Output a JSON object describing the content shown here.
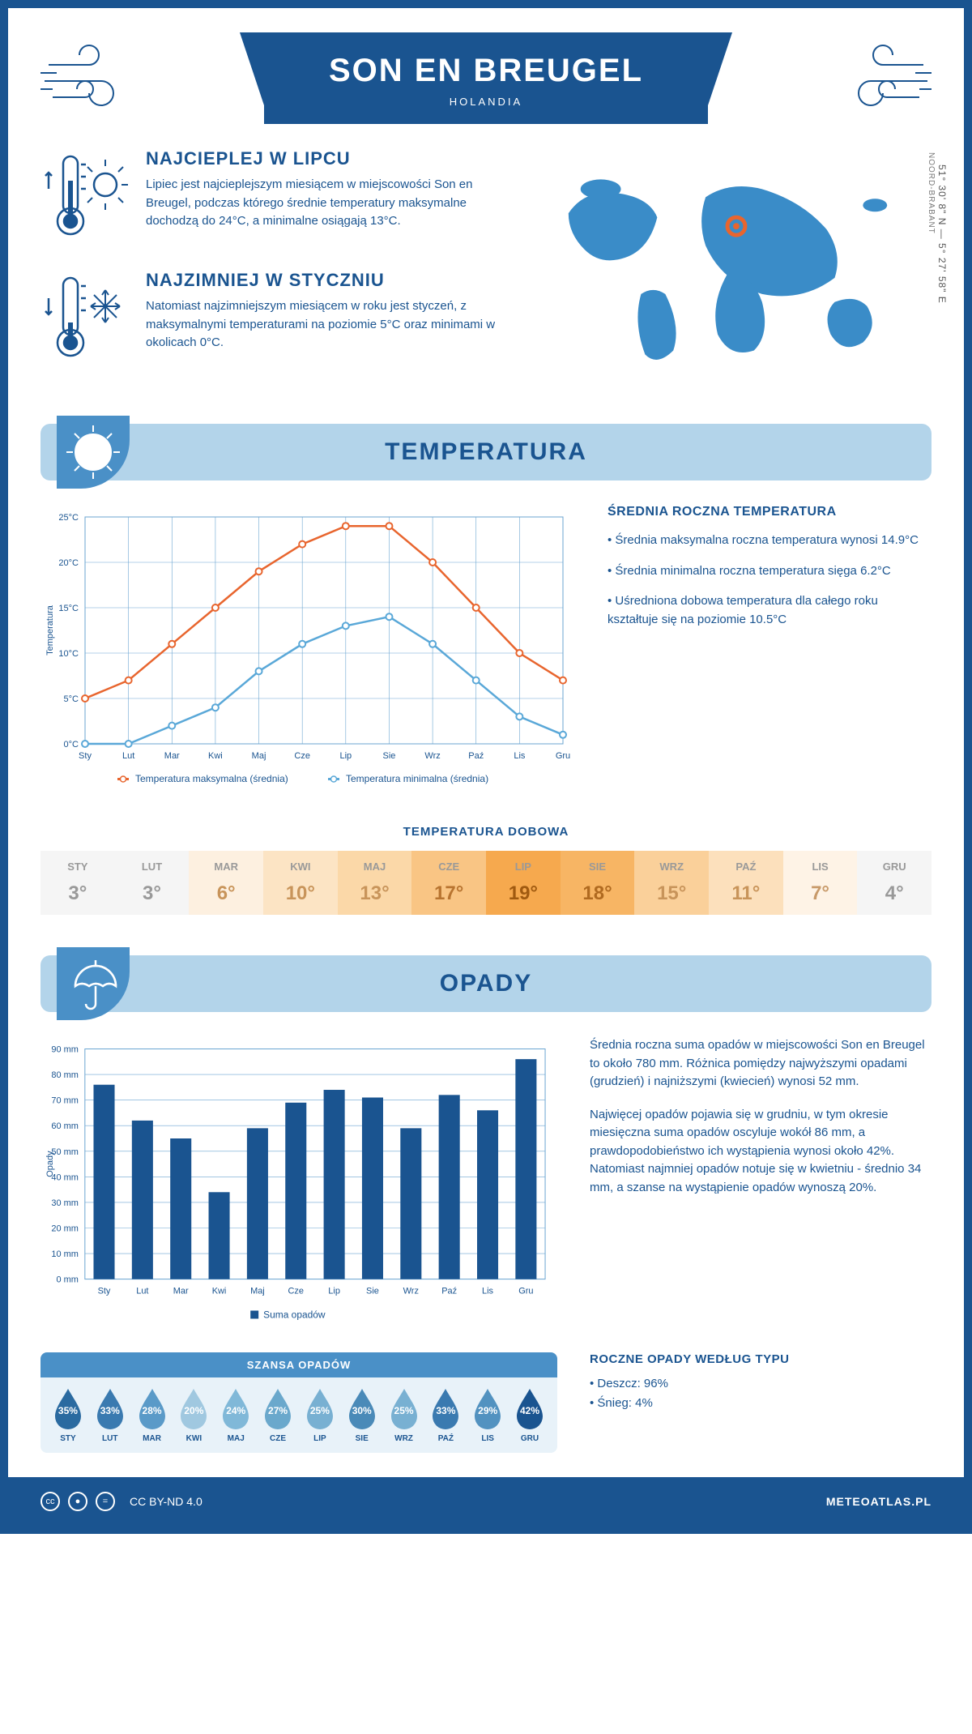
{
  "header": {
    "title": "SON EN BREUGEL",
    "country": "HOLANDIA",
    "coords": "51° 30' 8\" N — 5° 27' 58\" E",
    "region": "NOORD-BRABANT"
  },
  "intro": {
    "hot": {
      "title": "NAJCIEPLEJ W LIPCU",
      "text": "Lipiec jest najcieplejszym miesiącem w miejscowości Son en Breugel, podczas którego średnie temperatury maksymalne dochodzą do 24°C, a minimalne osiągają 13°C."
    },
    "cold": {
      "title": "NAJZIMNIEJ W STYCZNIU",
      "text": "Natomiast najzimniejszym miesiącem w roku jest styczeń, z maksymalnymi temperaturami na poziomie 5°C oraz minimami w okolicach 0°C."
    }
  },
  "sections": {
    "temp": "TEMPERATURA",
    "precip": "OPADY"
  },
  "months": [
    "Sty",
    "Lut",
    "Mar",
    "Kwi",
    "Maj",
    "Cze",
    "Lip",
    "Sie",
    "Wrz",
    "Paź",
    "Lis",
    "Gru"
  ],
  "months_upper": [
    "STY",
    "LUT",
    "MAR",
    "KWI",
    "MAJ",
    "CZE",
    "LIP",
    "SIE",
    "WRZ",
    "PAŹ",
    "LIS",
    "GRU"
  ],
  "temp_chart": {
    "ylabel": "Temperatura",
    "ylim": [
      0,
      25
    ],
    "ytick_step": 5,
    "max_series": {
      "label": "Temperatura maksymalna (średnia)",
      "color": "#e8652e",
      "values": [
        5,
        7,
        11,
        15,
        19,
        22,
        24,
        24,
        20,
        15,
        10,
        7
      ]
    },
    "min_series": {
      "label": "Temperatura minimalna (średnia)",
      "color": "#5aa8d8",
      "values": [
        0,
        0,
        2,
        4,
        8,
        11,
        13,
        14,
        11,
        7,
        3,
        1
      ]
    },
    "grid_color": "#6ba5d1",
    "background": "#ffffff",
    "axis_color": "#1a5490"
  },
  "temp_text": {
    "title": "ŚREDNIA ROCZNA TEMPERATURA",
    "bullets": [
      "• Średnia maksymalna roczna temperatura wynosi 14.9°C",
      "• Średnia minimalna roczna temperatura sięga 6.2°C",
      "• Uśredniona dobowa temperatura dla całego roku kształtuje się na poziomie 10.5°C"
    ]
  },
  "daily": {
    "title": "TEMPERATURA DOBOWA",
    "values": [
      3,
      3,
      6,
      10,
      13,
      17,
      19,
      18,
      15,
      11,
      7,
      4
    ],
    "bg_colors": [
      "#f5f5f5",
      "#f5f5f5",
      "#fdf0e0",
      "#fce4c4",
      "#fbd8a8",
      "#f9c584",
      "#f6a94e",
      "#f7b564",
      "#fad09a",
      "#fce0bc",
      "#fef3e6",
      "#f5f5f5"
    ],
    "txt_colors": [
      "#999",
      "#999",
      "#c8945a",
      "#c8945a",
      "#c8945a",
      "#b87430",
      "#a05a10",
      "#b06a20",
      "#c8945a",
      "#c8945a",
      "#c89a6a",
      "#999"
    ]
  },
  "precip_chart": {
    "ylabel": "Opady",
    "ylim": [
      0,
      90
    ],
    "ytick_step": 10,
    "series": {
      "label": "Suma opadów",
      "color": "#1a5490",
      "values": [
        76,
        62,
        55,
        34,
        59,
        69,
        74,
        71,
        59,
        72,
        66,
        86
      ]
    },
    "grid_color": "#6ba5d1",
    "background": "#ffffff"
  },
  "precip_text": {
    "p1": "Średnia roczna suma opadów w miejscowości Son en Breugel to około 780 mm. Różnica pomiędzy najwyższymi opadami (grudzień) i najniższymi (kwiecień) wynosi 52 mm.",
    "p2": "Najwięcej opadów pojawia się w grudniu, w tym okresie miesięczna suma opadów oscyluje wokół 86 mm, a prawdopodobieństwo ich wystąpienia wynosi około 42%. Natomiast najmniej opadów notuje się w kwietniu - średnio 34 mm, a szanse na wystąpienie opadów wynoszą 20%."
  },
  "chance": {
    "title": "SZANSA OPADÓW",
    "values": [
      35,
      33,
      28,
      20,
      24,
      27,
      25,
      30,
      25,
      33,
      29,
      42
    ],
    "colors": [
      "#2a6aa0",
      "#3a7ab0",
      "#5a9ac8",
      "#a0c8e0",
      "#80b8d8",
      "#6aa8cc",
      "#78b0d2",
      "#4a8ab8",
      "#78b0d2",
      "#3a7ab0",
      "#5292c0",
      "#1a5490"
    ]
  },
  "precip_type": {
    "title": "ROCZNE OPADY WEDŁUG TYPU",
    "lines": [
      "• Deszcz: 96%",
      "• Śnieg: 4%"
    ]
  },
  "footer": {
    "license": "CC BY-ND 4.0",
    "site": "METEOATLAS.PL"
  },
  "colors": {
    "primary": "#1a5490",
    "light_blue": "#b3d4ea",
    "mid_blue": "#4a90c7"
  }
}
